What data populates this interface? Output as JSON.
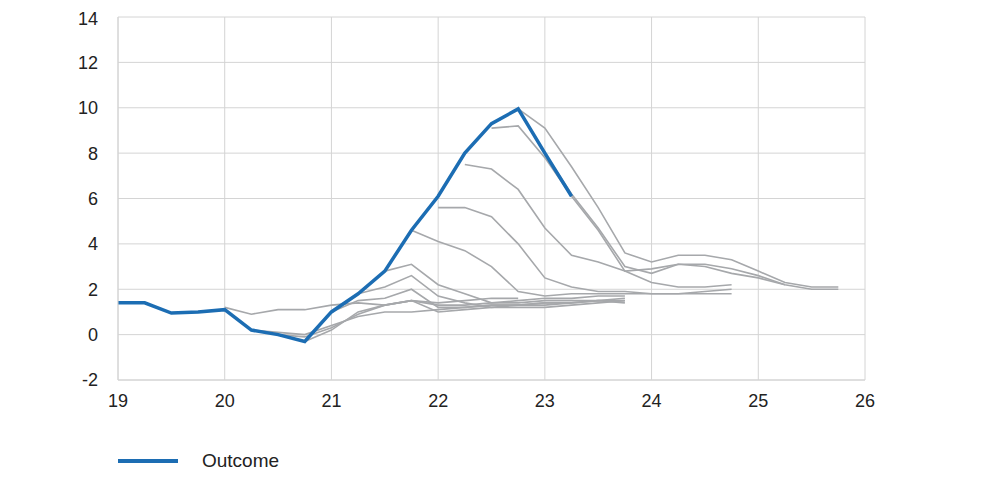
{
  "chart_data": {
    "type": "line",
    "xlim": [
      19,
      26
    ],
    "xticks": [
      19,
      20,
      21,
      22,
      23,
      24,
      25,
      26
    ],
    "ylim": [
      -2,
      14
    ],
    "yticks": [
      -2,
      0,
      2,
      4,
      6,
      8,
      10,
      12,
      14
    ],
    "grid": true,
    "legend": "bottom-left",
    "series": [
      {
        "color": "#a6a8ab",
        "x": [
          20,
          20.25,
          20.5,
          20.75,
          21,
          21.25,
          21.5,
          21.75,
          22,
          22.25,
          22.5,
          22.75
        ],
        "values": [
          1.2,
          0.9,
          1.1,
          1.1,
          1.3,
          1.4,
          1.3,
          1.5,
          1.4,
          1.5,
          1.6,
          1.6
        ]
      },
      {
        "color": "#a6a8ab",
        "x": [
          20.25,
          20.5,
          20.75,
          21,
          21.25,
          21.5,
          21.75,
          22,
          22.25,
          22.5,
          22.75,
          23,
          23.25
        ],
        "values": [
          0.2,
          0.1,
          0.0,
          0.4,
          0.8,
          1.0,
          1.0,
          1.1,
          1.2,
          1.3,
          1.3,
          1.4,
          1.4
        ]
      },
      {
        "color": "#a6a8ab",
        "x": [
          20.5,
          20.75,
          21,
          21.25,
          21.5,
          21.75,
          22,
          22.25,
          22.5,
          22.75,
          23,
          23.25,
          23.5,
          23.75
        ],
        "values": [
          0.0,
          -0.1,
          0.3,
          0.9,
          1.3,
          1.5,
          1.3,
          1.3,
          1.4,
          1.4,
          1.5,
          1.5,
          1.5,
          1.6
        ]
      },
      {
        "color": "#a6a8ab",
        "x": [
          20.75,
          21,
          21.25,
          21.5,
          21.75,
          22,
          22.25,
          22.5,
          22.75,
          23,
          23.25,
          23.5,
          23.75
        ],
        "values": [
          -0.3,
          0.2,
          1.0,
          1.3,
          1.5,
          1.0,
          1.1,
          1.2,
          1.3,
          1.4,
          1.4,
          1.5,
          1.5
        ]
      },
      {
        "color": "#a6a8ab",
        "x": [
          21,
          21.25,
          21.5,
          21.75,
          22,
          22.25,
          22.5,
          22.75,
          23,
          23.25,
          23.5,
          23.75
        ],
        "values": [
          1.0,
          1.5,
          1.6,
          2.0,
          1.2,
          1.2,
          1.3,
          1.3,
          1.3,
          1.4,
          1.5,
          1.4
        ]
      },
      {
        "color": "#a6a8ab",
        "x": [
          21.25,
          21.5,
          21.75,
          22,
          22.25,
          22.5,
          22.75,
          23,
          23.25,
          23.5,
          23.75
        ],
        "values": [
          1.8,
          2.1,
          2.6,
          1.7,
          1.4,
          1.2,
          1.2,
          1.2,
          1.3,
          1.4,
          1.5
        ]
      },
      {
        "color": "#a6a8ab",
        "x": [
          21.5,
          21.75,
          22,
          22.25,
          22.5,
          22.75,
          23,
          23.25,
          23.5,
          23.75
        ],
        "values": [
          2.8,
          3.1,
          2.2,
          1.8,
          1.4,
          1.5,
          1.6,
          1.6,
          1.7,
          1.7
        ]
      },
      {
        "color": "#a6a8ab",
        "x": [
          21.75,
          22,
          22.25,
          22.5,
          22.75,
          23,
          23.25,
          23.5,
          23.75,
          24,
          24.25,
          24.5,
          24.75
        ],
        "values": [
          4.6,
          4.1,
          3.7,
          3.0,
          1.9,
          1.7,
          1.8,
          1.8,
          1.8,
          1.8,
          1.8,
          1.8,
          1.8
        ]
      },
      {
        "color": "#a6a8ab",
        "x": [
          22,
          22.25,
          22.5,
          22.75,
          23,
          23.25,
          23.5,
          23.75,
          24,
          24.25,
          24.5,
          24.75
        ],
        "values": [
          5.6,
          5.6,
          5.2,
          4.0,
          2.5,
          2.1,
          1.9,
          1.9,
          1.8,
          1.8,
          1.9,
          2.0
        ]
      },
      {
        "color": "#a6a8ab",
        "x": [
          22.25,
          22.5,
          22.75,
          23,
          23.25,
          23.5,
          23.75,
          24,
          24.25,
          24.5,
          24.75
        ],
        "values": [
          7.5,
          7.3,
          6.4,
          4.7,
          3.5,
          3.2,
          2.8,
          2.3,
          2.1,
          2.1,
          2.2
        ]
      },
      {
        "color": "#a6a8ab",
        "x": [
          22.5,
          22.75,
          23,
          23.25,
          23.5,
          23.75,
          24,
          24.25,
          24.5,
          24.75,
          25,
          25.25
        ],
        "values": [
          9.1,
          9.2,
          7.8,
          6.1,
          4.6,
          2.8,
          2.9,
          3.1,
          3.0,
          2.7,
          2.5,
          2.2
        ]
      },
      {
        "color": "#a6a8ab",
        "x": [
          22.75,
          23,
          23.25,
          23.5,
          23.75,
          24,
          24.25,
          24.5,
          24.75,
          25,
          25.25,
          25.5,
          25.75
        ],
        "values": [
          9.95,
          9.1,
          7.4,
          5.6,
          3.6,
          3.2,
          3.5,
          3.5,
          3.3,
          2.8,
          2.3,
          2.1,
          2.1
        ]
      },
      {
        "color": "#a6a8ab",
        "x": [
          23,
          23.25,
          23.5,
          23.75,
          24,
          24.25,
          24.5,
          24.75,
          25,
          25.25,
          25.5,
          25.75
        ],
        "values": [
          8.0,
          6.2,
          4.7,
          3.0,
          2.7,
          3.1,
          3.1,
          2.9,
          2.6,
          2.2,
          2.0,
          2.0
        ]
      },
      {
        "name": "Outcome",
        "color": "#1c6db3",
        "x": [
          19,
          19.25,
          19.5,
          19.75,
          20,
          20.25,
          20.5,
          20.75,
          21,
          21.25,
          21.5,
          21.75,
          22,
          22.25,
          22.5,
          22.75,
          23,
          23.25
        ],
        "values": [
          1.4,
          1.4,
          0.95,
          1.0,
          1.1,
          0.2,
          0.0,
          -0.3,
          1.0,
          1.8,
          2.8,
          4.6,
          6.1,
          8.0,
          9.3,
          9.95,
          8.0,
          6.1
        ]
      }
    ]
  }
}
